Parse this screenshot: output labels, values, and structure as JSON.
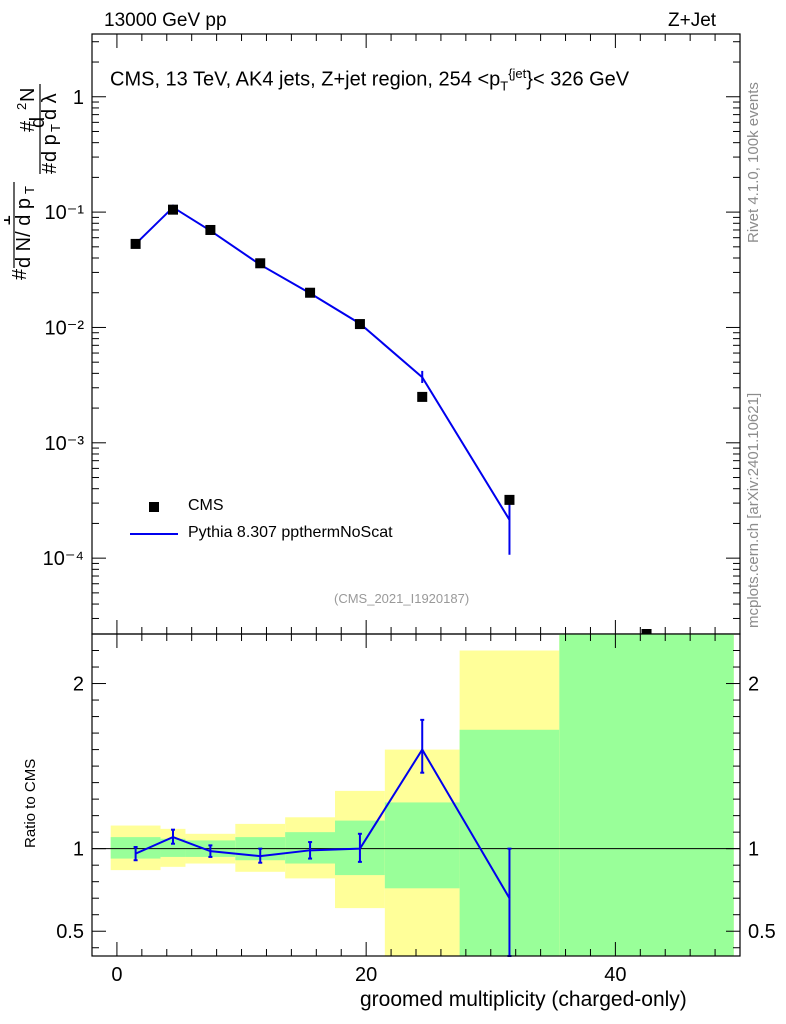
{
  "header": {
    "beam": "13000 GeV pp",
    "process": "Z+Jet"
  },
  "side": {
    "rivet": "Rivet 4.1.0,  100k events",
    "site": "mcplots.cern.ch [arXiv:2401.10621]"
  },
  "chart_data": {
    "type": "scatter",
    "title_parts": {
      "prefix": "CMS, 13 TeV, AK4 jets, Z+jet region, 254 <p",
      "sub": "T",
      "sup": "{jet",
      "suffix": "}< 326 GeV"
    },
    "analysis_id": "(CMS_2021_I1920187)",
    "xlabel": "groomed multiplicity (charged-only)",
    "ylabel_top": "1 / (dN/dpT) · d²N / (dpT dλ)",
    "ylabel_ratio": "Ratio to CMS",
    "xlim": [
      -2,
      50
    ],
    "xticks": [
      0,
      20,
      40
    ],
    "main": {
      "yscale": "log",
      "ylim": [
        2.2e-05,
        3.5
      ],
      "yticks": [
        {
          "value": 1,
          "label": "1"
        },
        {
          "value": 0.1,
          "label": "10⁻¹"
        },
        {
          "value": 0.01,
          "label": "10⁻²"
        },
        {
          "value": 0.001,
          "label": "10⁻³"
        },
        {
          "value": 0.0001,
          "label": "10⁻⁴"
        }
      ],
      "series": [
        {
          "name": "CMS",
          "style": "markers",
          "color": "#000000",
          "x": [
            1.5,
            4.5,
            7.5,
            11.5,
            15.5,
            19.5,
            24.5,
            31.5,
            42.5
          ],
          "y": [
            0.053,
            0.105,
            0.07,
            0.036,
            0.02,
            0.0107,
            0.0025,
            0.00032,
            2.1e-05
          ]
        },
        {
          "name": "Pythia 8.307 ppthermNoScat",
          "style": "line",
          "color": "#0000ee",
          "x": [
            1.5,
            4.5,
            7.5,
            11.5,
            15.5,
            19.5,
            24.5,
            31.5
          ],
          "y": [
            0.053,
            0.11,
            0.069,
            0.035,
            0.0198,
            0.0108,
            0.0037,
            0.000215
          ],
          "err_lo": [
            0.0025,
            0.005,
            0.003,
            0.0015,
            0.001,
            0.0007,
            0.0004,
            0.000108
          ],
          "err_hi": [
            0.0025,
            0.006,
            0.003,
            0.0015,
            0.001,
            0.0007,
            0.0005,
            0.000108
          ]
        }
      ]
    },
    "ratio": {
      "ylim": [
        0.35,
        2.3
      ],
      "yticks": [
        {
          "value": 2,
          "label": "2"
        },
        {
          "value": 1,
          "label": "1"
        },
        {
          "value": 0.5,
          "label": "0.5"
        }
      ],
      "bands": [
        {
          "x0": -0.5,
          "x1": 3.5,
          "y_lo": 0.87,
          "y_hi": 1.14,
          "g_lo": 0.94,
          "g_hi": 1.07
        },
        {
          "x0": 3.5,
          "x1": 5.5,
          "y_lo": 0.89,
          "y_hi": 1.12,
          "g_lo": 0.95,
          "g_hi": 1.06
        },
        {
          "x0": 5.5,
          "x1": 9.5,
          "y_lo": 0.91,
          "y_hi": 1.09,
          "g_lo": 0.95,
          "g_hi": 1.05
        },
        {
          "x0": 9.5,
          "x1": 13.5,
          "y_lo": 0.86,
          "y_hi": 1.15,
          "g_lo": 0.93,
          "g_hi": 1.07
        },
        {
          "x0": 13.5,
          "x1": 17.5,
          "y_lo": 0.82,
          "y_hi": 1.19,
          "g_lo": 0.91,
          "g_hi": 1.1
        },
        {
          "x0": 17.5,
          "x1": 21.5,
          "y_lo": 0.64,
          "y_hi": 1.35,
          "g_lo": 0.84,
          "g_hi": 1.17
        },
        {
          "x0": 21.5,
          "x1": 27.5,
          "y_lo": 0.35,
          "y_hi": 1.6,
          "g_lo": 0.76,
          "g_hi": 1.28
        },
        {
          "x0": 27.5,
          "x1": 35.5,
          "y_lo": 0.35,
          "y_hi": 2.2,
          "g_lo": 0.35,
          "g_hi": 1.72
        },
        {
          "x0": 35.5,
          "x1": 49.5,
          "y_lo": 0.35,
          "y_hi": 2.3,
          "g_lo": 0.35,
          "g_hi": 2.3
        }
      ],
      "series": {
        "name": "Pythia 8.307 ppthermNoScat",
        "color": "#0000ee",
        "x": [
          1.5,
          4.5,
          7.5,
          11.5,
          15.5,
          19.5,
          24.5,
          31.5
        ],
        "y": [
          0.97,
          1.07,
          0.985,
          0.955,
          0.99,
          1.0,
          1.6,
          0.7
        ],
        "err_lo": [
          0.04,
          0.04,
          0.035,
          0.04,
          0.05,
          0.08,
          0.14,
          0.35
        ],
        "err_hi": [
          0.04,
          0.045,
          0.035,
          0.045,
          0.05,
          0.09,
          0.18,
          0.3
        ]
      }
    },
    "colors": {
      "band_outer": "#ffff99",
      "band_inner": "#99ff99",
      "line": "#0000ee",
      "marker": "#000000",
      "analysis_id": "#999999"
    }
  }
}
